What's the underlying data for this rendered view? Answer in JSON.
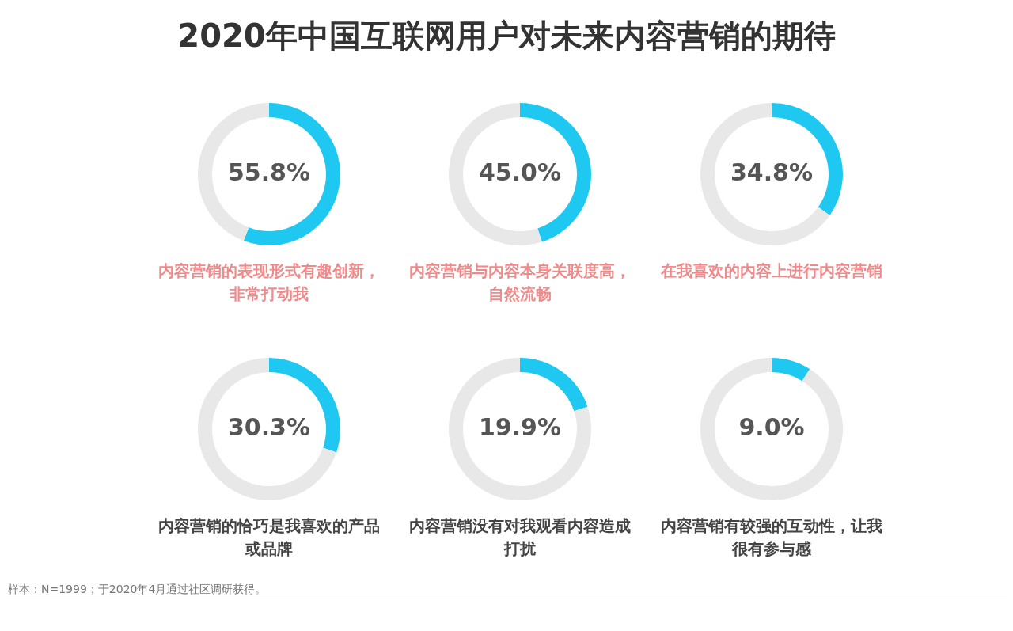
{
  "chart_data": [
    {
      "type": "other",
      "title": "2020年中国互联网用户对未来内容营销的期待",
      "annotations": [
        "样本：N=1999；于2020年4月通过社区调研获得。"
      ]
    },
    {
      "type": "donut",
      "title": "内容营销的表现形式有趣创新，非常打动我",
      "categories": [
        null,
        null
      ],
      "values": [
        55.8,
        44.2
      ],
      "colors": [
        "#1ec8f0",
        "#e8e8e8"
      ],
      "value_labels": [
        "55.8%",
        null
      ],
      "legend": false
    },
    {
      "type": "donut",
      "title": "内容营销与内容本身关联度高，自然流畅",
      "categories": [
        null,
        null
      ],
      "values": [
        45.0,
        55.0
      ],
      "colors": [
        "#1ec8f0",
        "#e8e8e8"
      ],
      "value_labels": [
        "45.0%",
        null
      ],
      "legend": false
    },
    {
      "type": "donut",
      "title": "在我喜欢的内容上进行内容营销",
      "categories": [
        null,
        null
      ],
      "values": [
        34.8,
        65.2
      ],
      "colors": [
        "#1ec8f0",
        "#e8e8e8"
      ],
      "value_labels": [
        "34.8%",
        null
      ],
      "legend": false
    },
    {
      "type": "donut",
      "title": "内容营销的恰巧是我喜欢的产品或品牌",
      "categories": [
        null,
        null
      ],
      "values": [
        30.3,
        69.7
      ],
      "colors": [
        "#1ec8f0",
        "#e8e8e8"
      ],
      "value_labels": [
        "30.3%",
        null
      ],
      "legend": false
    },
    {
      "type": "donut",
      "title": "内容营销没有对我观看内容造成打扰",
      "categories": [
        null,
        null
      ],
      "values": [
        19.9,
        80.1
      ],
      "colors": [
        "#1ec8f0",
        "#e8e8e8"
      ],
      "value_labels": [
        "19.9%",
        null
      ],
      "legend": false
    },
    {
      "type": "donut",
      "title": "内容营销有较强的互动性，让我很有参与感",
      "categories": [
        null,
        null
      ],
      "values": [
        9.0,
        91.0
      ],
      "colors": [
        "#1ec8f0",
        "#e8e8e8"
      ],
      "value_labels": [
        "9.0%",
        null
      ],
      "legend": false
    }
  ]
}
